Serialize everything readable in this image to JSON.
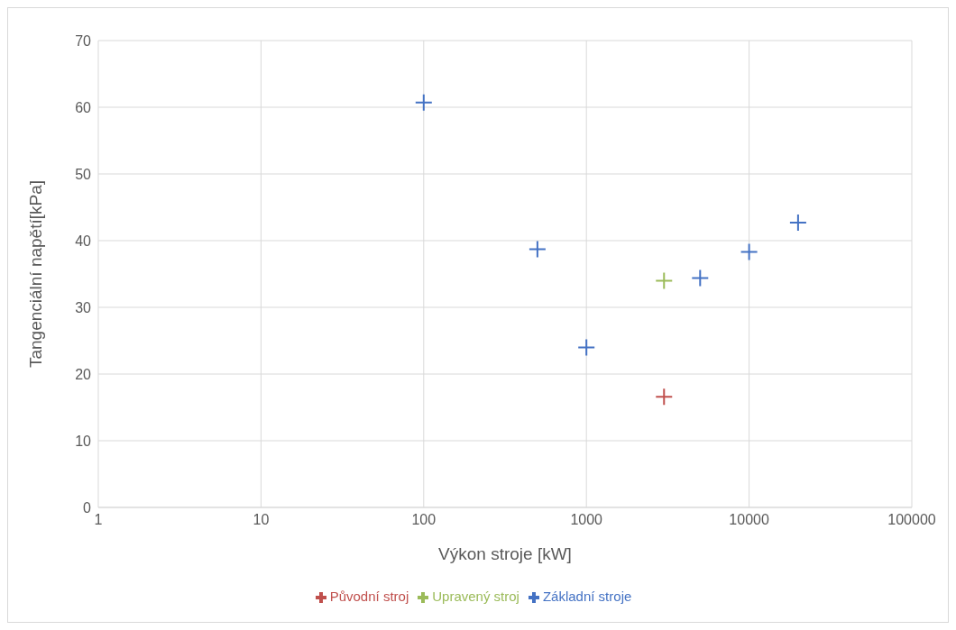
{
  "chart_data": {
    "type": "scatter",
    "xlabel": "Výkon stroje [kW]",
    "ylabel": "Tangenciální napětí[kPa]",
    "log": "x",
    "xlim": [
      1,
      100000
    ],
    "xticks": [
      1,
      10,
      100,
      1000,
      10000,
      100000
    ],
    "ylim": [
      0,
      70
    ],
    "yticks": [
      0,
      10,
      20,
      30,
      40,
      50,
      60,
      70
    ],
    "grid": true,
    "legend": "bottom",
    "marker": "cross",
    "series": [
      {
        "name": "Základní stroje",
        "color": "#4472c4",
        "x": [
          100,
          500,
          1000,
          5000,
          10000,
          20000
        ],
        "values": [
          60.7,
          38.7,
          24,
          34.4,
          38.3,
          42.7
        ]
      },
      {
        "name": "Původní stroj",
        "color": "#c0504d",
        "x": [
          3000
        ],
        "values": [
          16.6
        ]
      },
      {
        "name": "Upravený stroj",
        "color": "#9bbb59",
        "x": [
          3000
        ],
        "values": [
          34
        ]
      }
    ]
  }
}
